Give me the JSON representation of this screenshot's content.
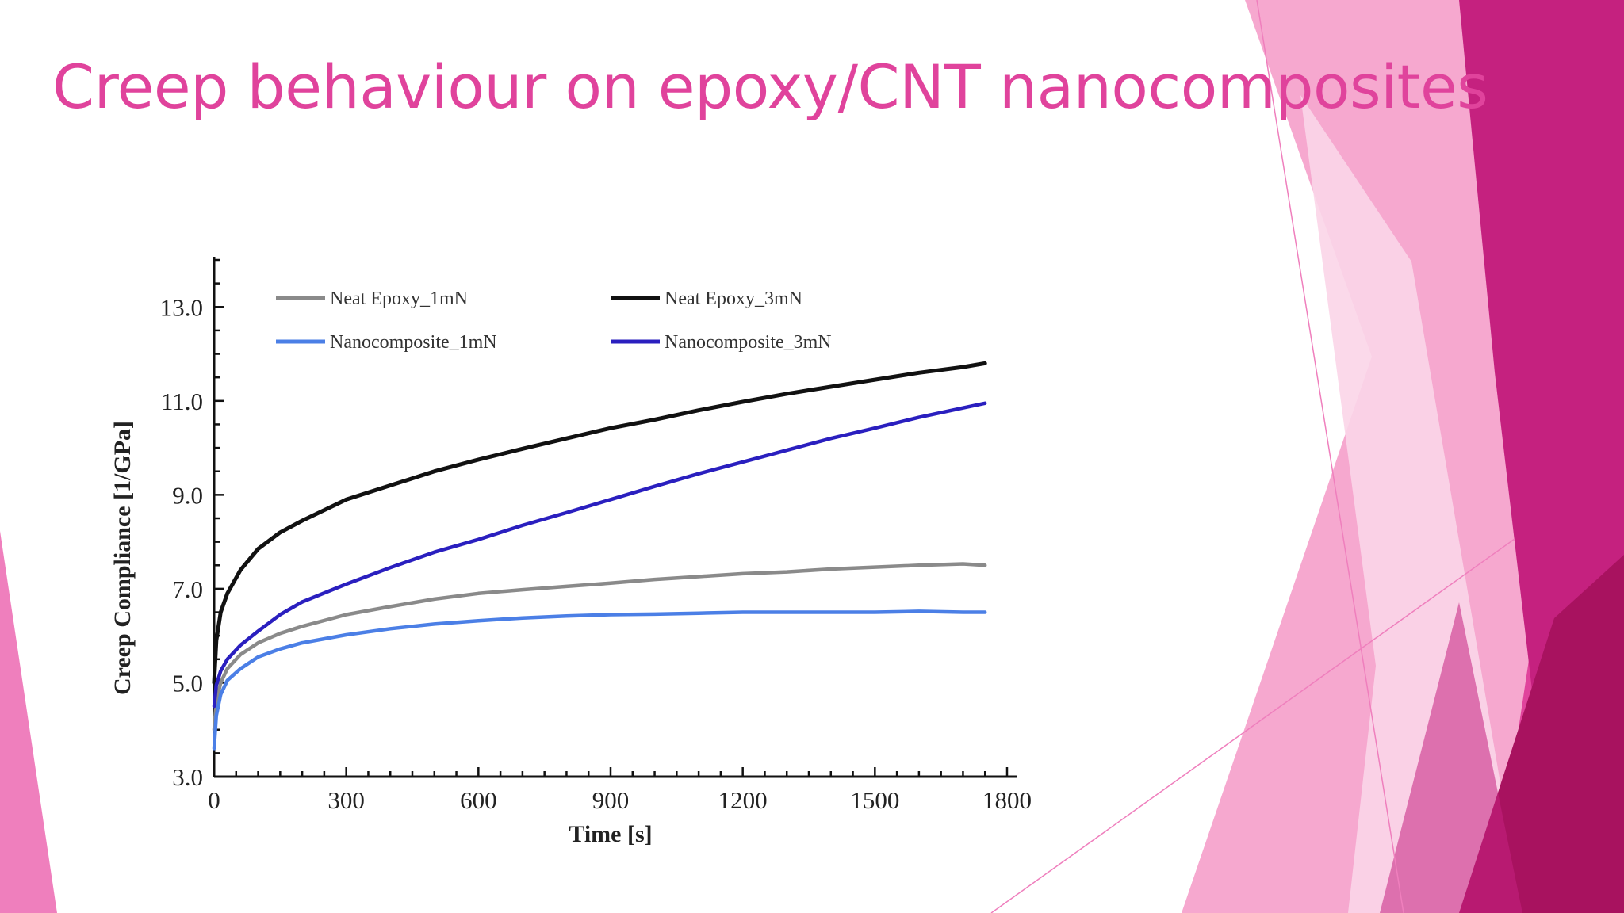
{
  "slide": {
    "title": "Creep behaviour on epoxy/CNT nanocomposites",
    "title_color": "#e0439c",
    "theme_colors": [
      "#f6a8cf",
      "#ef7fbd",
      "#e0439c",
      "#c5217f",
      "#a8125f",
      "#fbd5e8"
    ]
  },
  "chart_data": {
    "type": "line",
    "xlabel": "Time [s]",
    "ylabel": "Creep Compliance [1/GPa]",
    "xlim": [
      0,
      1800
    ],
    "ylim": [
      3.0,
      14.0
    ],
    "xticks": [
      0,
      300,
      600,
      900,
      1200,
      1500,
      1800
    ],
    "xtick_labels": [
      "0",
      "300",
      "600",
      "900",
      "1200",
      "1500",
      "1800"
    ],
    "yticks": [
      3.0,
      5.0,
      7.0,
      9.0,
      11.0,
      13.0
    ],
    "ytick_labels": [
      "3.0",
      "5.0",
      "7.0",
      "9.0",
      "11.0",
      "13.0"
    ],
    "grid": false,
    "legend": "top-left, two columns",
    "x": [
      0,
      5,
      15,
      30,
      60,
      100,
      150,
      200,
      300,
      400,
      500,
      600,
      700,
      800,
      900,
      1000,
      1100,
      1200,
      1300,
      1400,
      1500,
      1600,
      1700,
      1750
    ],
    "series": [
      {
        "name": "Neat Epoxy_1mN",
        "color": "#8a8a8a",
        "values": [
          4.0,
          4.6,
          5.0,
          5.3,
          5.6,
          5.85,
          6.05,
          6.2,
          6.45,
          6.62,
          6.78,
          6.9,
          6.98,
          7.05,
          7.12,
          7.2,
          7.26,
          7.32,
          7.36,
          7.42,
          7.46,
          7.5,
          7.53,
          7.5
        ]
      },
      {
        "name": "Neat Epoxy_3mN",
        "color": "#111111",
        "values": [
          5.0,
          5.9,
          6.5,
          6.9,
          7.4,
          7.85,
          8.2,
          8.45,
          8.9,
          9.2,
          9.5,
          9.75,
          9.98,
          10.2,
          10.42,
          10.6,
          10.8,
          10.98,
          11.15,
          11.3,
          11.45,
          11.6,
          11.72,
          11.8
        ]
      },
      {
        "name": "Nanocomposite_1mN",
        "color": "#4b7fe6",
        "values": [
          3.6,
          4.3,
          4.75,
          5.05,
          5.3,
          5.55,
          5.72,
          5.85,
          6.02,
          6.15,
          6.25,
          6.32,
          6.38,
          6.42,
          6.45,
          6.46,
          6.48,
          6.5,
          6.5,
          6.5,
          6.5,
          6.52,
          6.5,
          6.5
        ]
      },
      {
        "name": "Nanocomposite_3mN",
        "color": "#2a1fbf",
        "values": [
          4.5,
          4.95,
          5.25,
          5.5,
          5.8,
          6.1,
          6.45,
          6.72,
          7.1,
          7.45,
          7.78,
          8.05,
          8.35,
          8.62,
          8.9,
          9.18,
          9.45,
          9.7,
          9.95,
          10.2,
          10.42,
          10.65,
          10.85,
          10.95
        ]
      }
    ]
  }
}
